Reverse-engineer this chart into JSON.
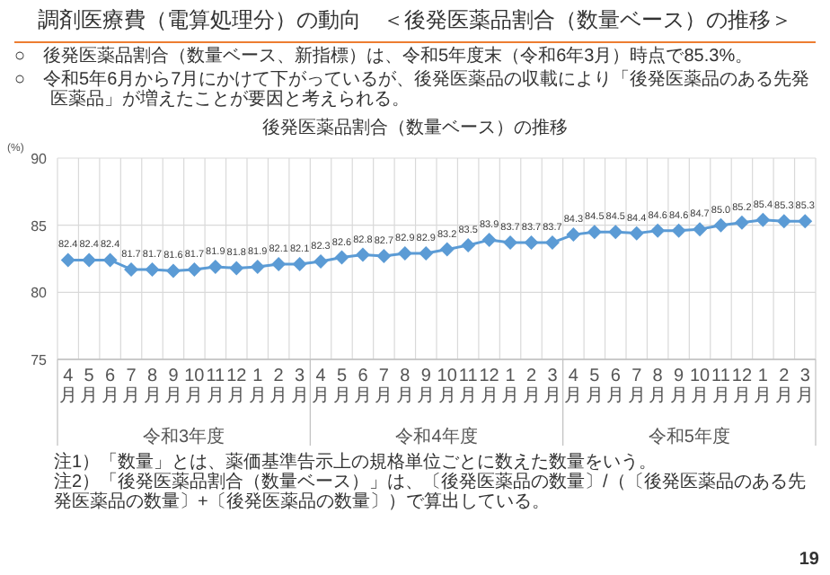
{
  "chart_data": {
    "type": "line",
    "title": "調剤医療費（電算処理分）の動向　＜後発医薬品割合（数量ベース）の推移＞",
    "subtitle": "後発医薬品割合（数量ベース）の推移",
    "ylabel": "(%)",
    "categories": [
      "4月",
      "5月",
      "6月",
      "7月",
      "8月",
      "9月",
      "10月",
      "11月",
      "12月",
      "1月",
      "2月",
      "3月",
      "4月",
      "5月",
      "6月",
      "7月",
      "8月",
      "9月",
      "10月",
      "11月",
      "12月",
      "1月",
      "2月",
      "3月",
      "4月",
      "5月",
      "6月",
      "7月",
      "8月",
      "9月",
      "10月",
      "11月",
      "12月",
      "1月",
      "2月",
      "3月"
    ],
    "series": [
      {
        "color": "#5b9bd5",
        "values": [
          82.4,
          82.4,
          82.4,
          81.7,
          81.7,
          81.6,
          81.7,
          81.9,
          81.8,
          81.9,
          82.1,
          82.1,
          82.3,
          82.6,
          82.8,
          82.7,
          82.9,
          82.9,
          83.2,
          83.5,
          83.9,
          83.7,
          83.7,
          83.7,
          84.3,
          84.5,
          84.5,
          84.4,
          84.6,
          84.6,
          84.7,
          85.0,
          85.2,
          85.4,
          85.3,
          85.3
        ],
        "value_labels": [
          "82.4",
          "82.4",
          "82.4",
          "81.7",
          "81.7",
          "81.6",
          "81.7",
          "81.9",
          "81.8",
          "81.9",
          "82.1",
          "82.1",
          "82.3",
          "82.6",
          "82.8",
          "82.7",
          "82.9",
          "82.9",
          "83.2",
          "83.5",
          "83.9",
          "83.7",
          "83.7",
          "83.7",
          "84.3",
          "84.5",
          "84.5",
          "84.4",
          "84.6",
          "84.6",
          "84.7",
          "85.0",
          "85.2",
          "85.4",
          "85.3",
          "85.3"
        ]
      }
    ],
    "ylim": [
      75,
      90
    ],
    "yticks": [
      75,
      80,
      85,
      90
    ],
    "grid": true,
    "marker": "diamond",
    "line_style": "solid",
    "annotations": [
      "○　後発医薬品割合（数量ベース、新指標）は、令和5年度末（令和6年3月）時点で85.3%。",
      "○　令和5年6月から7月にかけて下がっているが、後発医薬品の収載により「後発医薬品のある先発医薬品」が増えたことが要因と考えられる。",
      "令和3年度",
      "令和4年度",
      "令和5年度",
      "注1）「数量」とは、薬価基準告示上の規格単位ごとに数えた数量をいう。",
      "注2）「後発医薬品割合（数量ベース）」は、〔後発医薬品の数量〕/（〔後発医薬品のある先発医薬品の数量〕+〔後発医薬品の数量〕）で算出している。",
      "19"
    ]
  }
}
